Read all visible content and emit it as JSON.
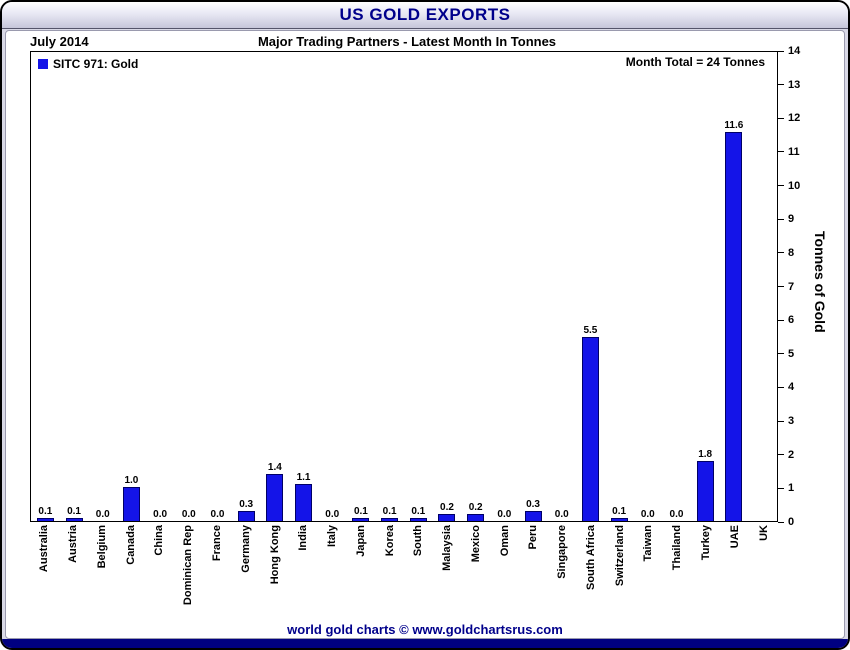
{
  "window": {
    "title": "US GOLD EXPORTS"
  },
  "header": {
    "period": "July 2014",
    "subtitle": "Major Trading Partners - Latest Month In Tonnes"
  },
  "legend": {
    "label": "SITC 971: Gold"
  },
  "annotations": {
    "month_total": "Month Total = 24 Tonnes"
  },
  "footer": {
    "credit": "world gold charts © www.goldchartsrus.com"
  },
  "colors": {
    "bar_blue": "#1414E8",
    "title_navy": "#00008B",
    "strip_navy": "#000080"
  },
  "chart_data": {
    "type": "bar",
    "title": "Major Trading Partners - Latest Month In Tonnes",
    "period": "July 2014",
    "xlabel": "",
    "ylabel": "Tonnes of Gold",
    "ylim": [
      0,
      14
    ],
    "yticks": [
      0,
      1,
      2,
      3,
      4,
      5,
      6,
      7,
      8,
      9,
      10,
      11,
      12,
      13,
      14
    ],
    "grid": false,
    "legend_entries": [
      "SITC 971: Gold"
    ],
    "legend_position": "top-left",
    "y_axis_side": "right",
    "bar_color": "#1414E8",
    "categories": [
      "Australia",
      "Austria",
      "Belgium",
      "Canada",
      "China",
      "Dominican Rep",
      "France",
      "Germany",
      "Hong Kong",
      "India",
      "Italy",
      "Japan",
      "Korea",
      "South",
      "Malaysia",
      "Mexico",
      "Oman",
      "Peru",
      "Singapore",
      "South Africa",
      "Switzerland",
      "Taiwan",
      "Thailand",
      "Turkey",
      "UAE",
      "UK"
    ],
    "values": [
      0.1,
      0.1,
      0.0,
      1.0,
      0.0,
      0.0,
      0.0,
      0.3,
      1.4,
      1.1,
      0.0,
      0.1,
      0.1,
      0.1,
      0.2,
      0.2,
      0.0,
      0.3,
      0.0,
      5.5,
      0.1,
      0.0,
      0.0,
      1.8,
      11.6,
      0.0
    ],
    "value_labels": [
      "0.1",
      "0.1",
      "0.0",
      "1.0",
      "0.0",
      "0.0",
      "0.0",
      "0.3",
      "1.4",
      "1.1",
      "0.0",
      "0.1",
      "0.1",
      "0.1",
      "0.2",
      "0.2",
      "0.0",
      "0.3",
      "0.0",
      "5.5",
      "0.1",
      "0.0",
      "0.0",
      "1.8",
      "11.6",
      ""
    ],
    "month_total_tonnes": 24
  }
}
